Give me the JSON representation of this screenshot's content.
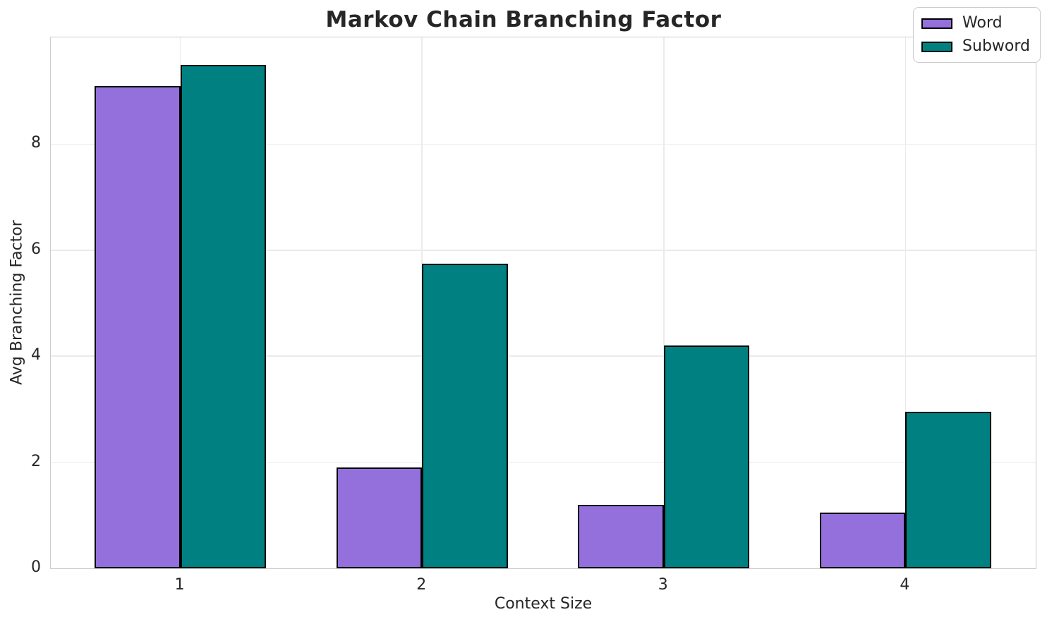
{
  "title": "Markov Chain Branching Factor",
  "chart_data": {
    "type": "bar",
    "title": "Markov Chain Branching Factor",
    "xlabel": "Context Size",
    "ylabel": "Avg Branching Factor",
    "categories": [
      "1",
      "2",
      "3",
      "4"
    ],
    "series": [
      {
        "name": "Word",
        "color": "#9370DB",
        "values": [
          9.1,
          1.9,
          1.2,
          1.05
        ]
      },
      {
        "name": "Subword",
        "color": "#008080",
        "values": [
          9.5,
          5.75,
          4.2,
          2.95
        ]
      }
    ],
    "ylim": [
      0,
      10
    ],
    "y_ticks": [
      0,
      2,
      4,
      6,
      8
    ],
    "grid": "on",
    "legend_position": "upper right",
    "bar_edge_color": "#000000",
    "grid_color": "#ebebeb",
    "spine_color": "#cccccc",
    "text_color": "#262626"
  }
}
